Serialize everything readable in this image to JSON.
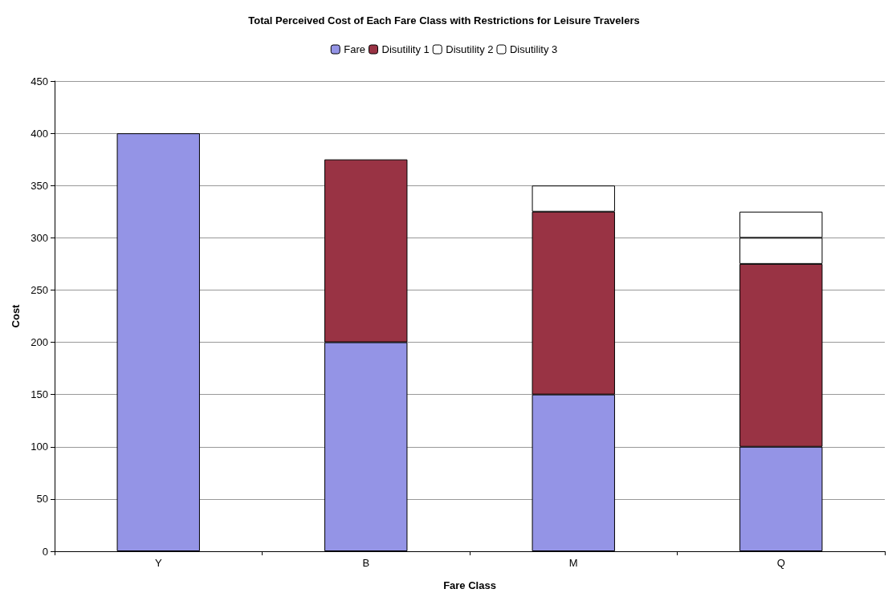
{
  "chart_data": {
    "type": "bar",
    "title": "Total Perceived Cost of Each Fare Class with Restrictions for Leisure Travelers",
    "xlabel": "Fare Class",
    "ylabel": "Cost",
    "categories": [
      "Y",
      "B",
      "M",
      "Q"
    ],
    "stacked": true,
    "series": [
      {
        "name": "Fare",
        "color": "#9494e6",
        "values": [
          400,
          200,
          150,
          100
        ]
      },
      {
        "name": "Disutility 1",
        "color": "#993344",
        "values": [
          null,
          175,
          175,
          175
        ]
      },
      {
        "name": "Disutility 2",
        "color": "#ffffff",
        "values": [
          null,
          null,
          25,
          25
        ]
      },
      {
        "name": "Disutility 3",
        "color": "#ffffff",
        "values": [
          null,
          null,
          null,
          25
        ]
      }
    ],
    "ylim": [
      0,
      450
    ],
    "yticks": [
      0,
      50,
      100,
      150,
      200,
      250,
      300,
      350,
      400,
      450
    ],
    "grid": "y",
    "legend": "top"
  }
}
